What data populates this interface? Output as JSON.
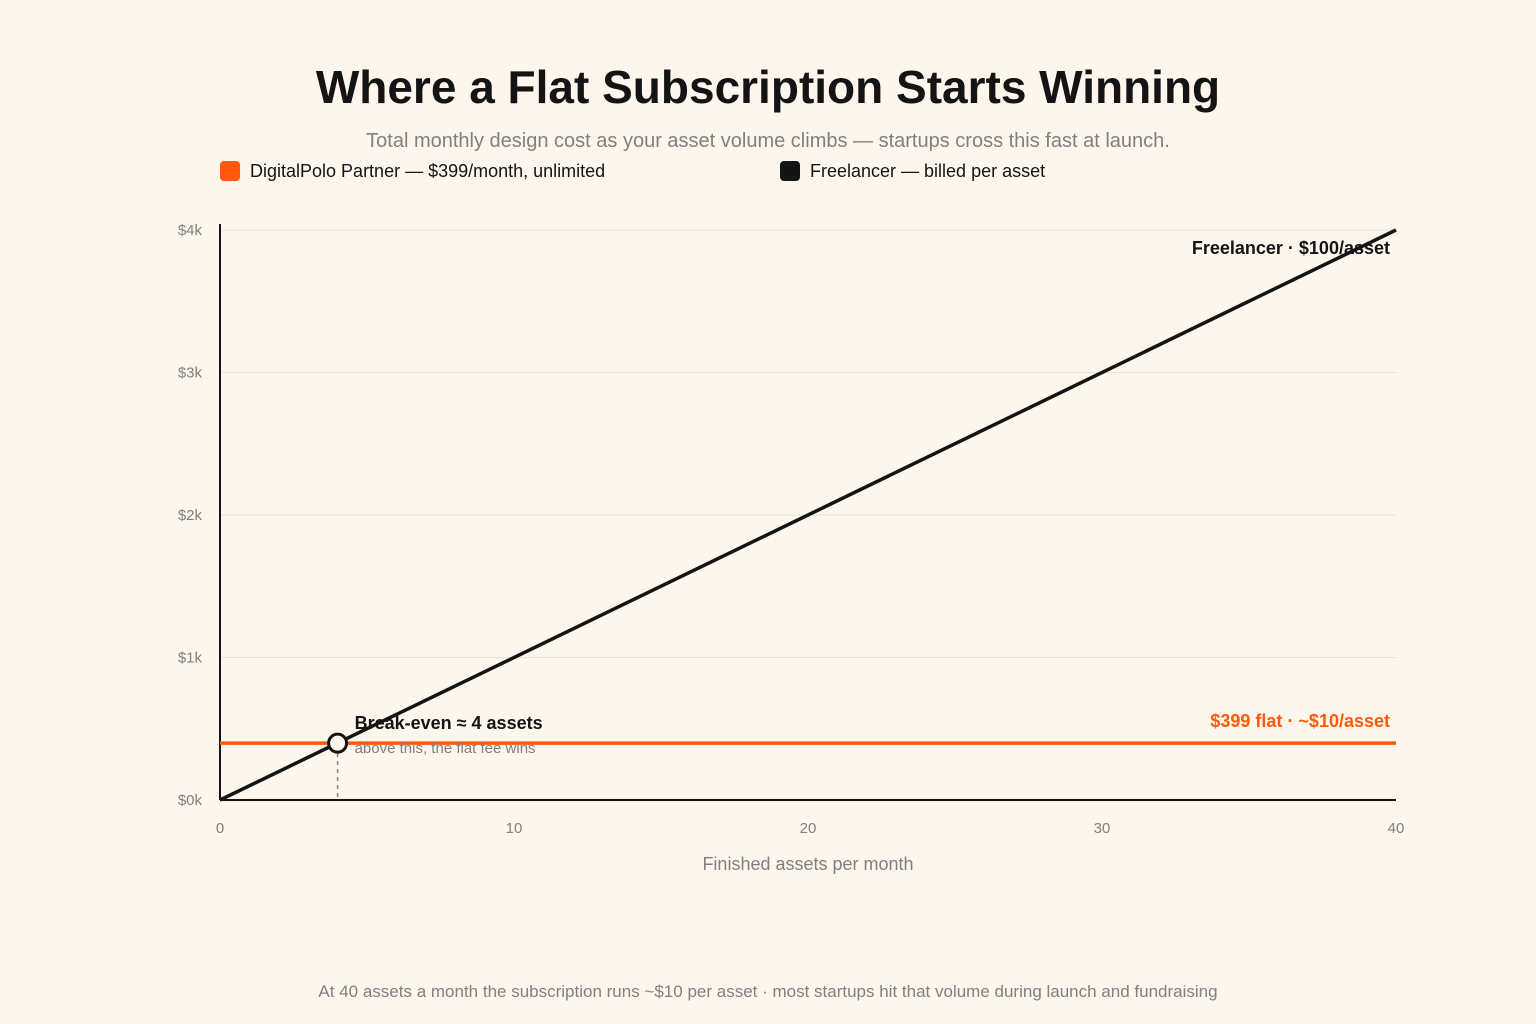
{
  "header": {
    "title": "Where a Flat Subscription Starts Winning",
    "subtitle": "Total monthly design cost as your asset volume climbs — startups cross this fast at launch."
  },
  "footer": {
    "note": "At 40 assets a month the subscription runs ~$10 per asset · most startups hit that volume during launch and fundraising"
  },
  "colors": {
    "background": "#fdf6ec",
    "subscription": "#ff5a0a",
    "freelancer": "#141414",
    "grid": "#ebe3d8",
    "muted": "#808080"
  },
  "chart_data": {
    "type": "line",
    "title": "Where a Flat Subscription Starts Winning",
    "subtitle": "Total monthly design cost as your asset volume climbs — startups cross this fast at launch.",
    "xlabel": "Finished assets per month",
    "ylabel": "",
    "xlim": [
      0,
      40
    ],
    "ylim": [
      0,
      4000
    ],
    "x_ticks": [
      0,
      10,
      20,
      30,
      40
    ],
    "x_tick_labels": [
      "0",
      "10",
      "20",
      "30",
      "40"
    ],
    "y_ticks": [
      0,
      1000,
      2000,
      3000,
      4000
    ],
    "y_tick_labels": [
      "$0k",
      "$1k",
      "$2k",
      "$3k",
      "$4k"
    ],
    "grid": "horizontal",
    "legend_position": "top-left",
    "series": [
      {
        "name": "DigitalPolo Partner — $399/month, unlimited",
        "color": "#ff5a0a",
        "x": [
          0,
          40
        ],
        "y": [
          399,
          399
        ],
        "end_label": "$399 flat · ~$10/asset"
      },
      {
        "name": "Freelancer — billed per asset",
        "color": "#141414",
        "x": [
          0,
          40
        ],
        "y": [
          0,
          4000
        ],
        "end_label": "Freelancer · $100/asset"
      }
    ],
    "annotations": [
      {
        "x": 4,
        "y": 399,
        "title": "Break-even ≈ 4 assets",
        "subtitle": "above this, the flat fee wins"
      }
    ]
  }
}
